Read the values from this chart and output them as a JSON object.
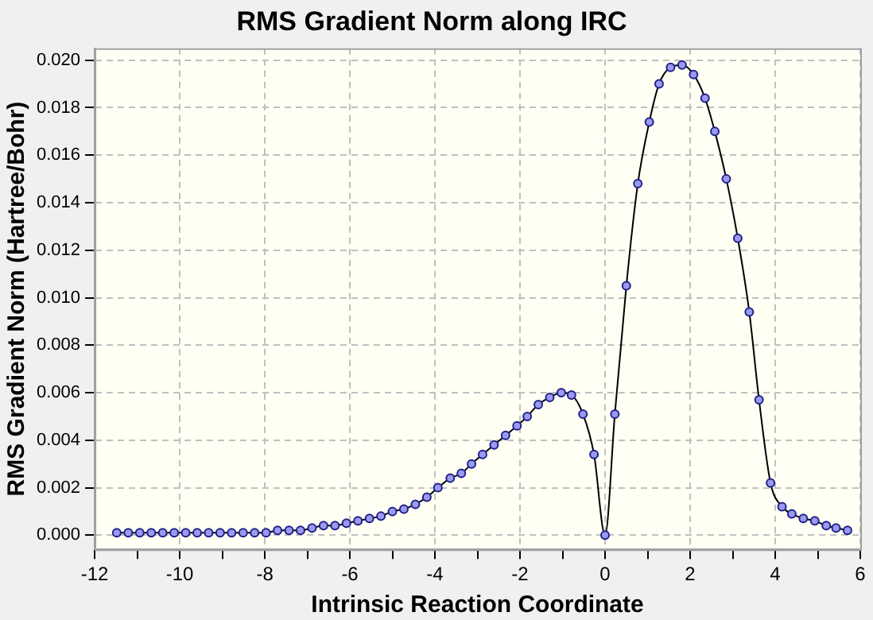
{
  "chart_data": {
    "type": "line",
    "title": "RMS Gradient Norm along IRC",
    "xlabel": "Intrinsic Reaction Coordinate",
    "ylabel": "RMS Gradient Norm (Hartree/Bohr)",
    "x": [
      -11.48,
      -11.21,
      -10.94,
      -10.67,
      -10.4,
      -10.13,
      -9.86,
      -9.59,
      -9.32,
      -9.05,
      -8.78,
      -8.51,
      -8.24,
      -7.97,
      -7.7,
      -7.43,
      -7.16,
      -6.89,
      -6.62,
      -6.35,
      -6.08,
      -5.81,
      -5.54,
      -5.27,
      -5.0,
      -4.73,
      -4.46,
      -4.19,
      -3.93,
      -3.64,
      -3.38,
      -3.14,
      -2.88,
      -2.61,
      -2.34,
      -2.07,
      -1.83,
      -1.57,
      -1.3,
      -1.03,
      -0.79,
      -0.52,
      -0.26,
      0.0,
      0.23,
      0.5,
      0.77,
      1.04,
      1.27,
      1.54,
      1.81,
      2.08,
      2.35,
      2.58,
      2.85,
      3.12,
      3.39,
      3.62,
      3.89,
      4.16,
      4.39,
      4.66,
      4.93,
      5.2,
      5.43,
      5.7
    ],
    "series": [
      {
        "color": "#000000",
        "values": [
          0.0001,
          0.0001,
          0.0001,
          0.0001,
          0.0001,
          0.0001,
          0.0001,
          0.0001,
          0.0001,
          0.0001,
          0.0001,
          0.0001,
          0.0001,
          0.0001,
          0.0002,
          0.0002,
          0.0002,
          0.0003,
          0.0004,
          0.0004,
          0.0005,
          0.0006,
          0.0007,
          0.0008,
          0.001,
          0.0011,
          0.0013,
          0.0016,
          0.002,
          0.0024,
          0.0026,
          0.003,
          0.0034,
          0.0038,
          0.0042,
          0.0046,
          0.005,
          0.0055,
          0.0058,
          0.006,
          0.0059,
          0.0051,
          0.0034,
          0.0,
          0.0051,
          0.0105,
          0.0148,
          0.0174,
          0.019,
          0.0197,
          0.0198,
          0.0194,
          0.0184,
          0.017,
          0.015,
          0.0125,
          0.0094,
          0.0057,
          0.0022,
          0.0012,
          0.0009,
          0.0007,
          0.0006,
          0.0004,
          0.0003,
          0.0002
        ]
      }
    ],
    "marker": "circle",
    "grid": true,
    "legend": false,
    "line_style": "solid",
    "xlim": [
      -12,
      6
    ],
    "xticks": [
      -12,
      {
        "value": -11,
        "label": null
      },
      -10,
      {
        "value": -9,
        "label": null
      },
      -8,
      {
        "value": -7,
        "label": null
      },
      -6,
      {
        "value": -5,
        "label": null
      },
      -4,
      {
        "value": -3,
        "label": null
      },
      -2,
      {
        "value": -1,
        "label": null
      },
      0,
      {
        "value": 1,
        "label": null
      },
      2,
      {
        "value": 3,
        "label": null
      },
      4,
      {
        "value": 5,
        "label": null
      },
      6
    ],
    "ylim": [
      -0.0006,
      0.0205
    ],
    "yticks": [
      {
        "value": 0,
        "label": "0.000"
      },
      {
        "value": 0.002,
        "label": "0.002"
      },
      {
        "value": 0.004,
        "label": "0.004"
      },
      {
        "value": 0.006,
        "label": "0.006"
      },
      {
        "value": 0.008,
        "label": "0.008"
      },
      {
        "value": 0.01,
        "label": "0.010"
      },
      {
        "value": 0.012,
        "label": "0.012"
      },
      {
        "value": 0.014,
        "label": "0.014"
      },
      {
        "value": 0.016,
        "label": "0.016"
      },
      {
        "value": 0.018,
        "label": "0.018"
      },
      {
        "value": 0.02,
        "label": "0.020"
      }
    ]
  }
}
